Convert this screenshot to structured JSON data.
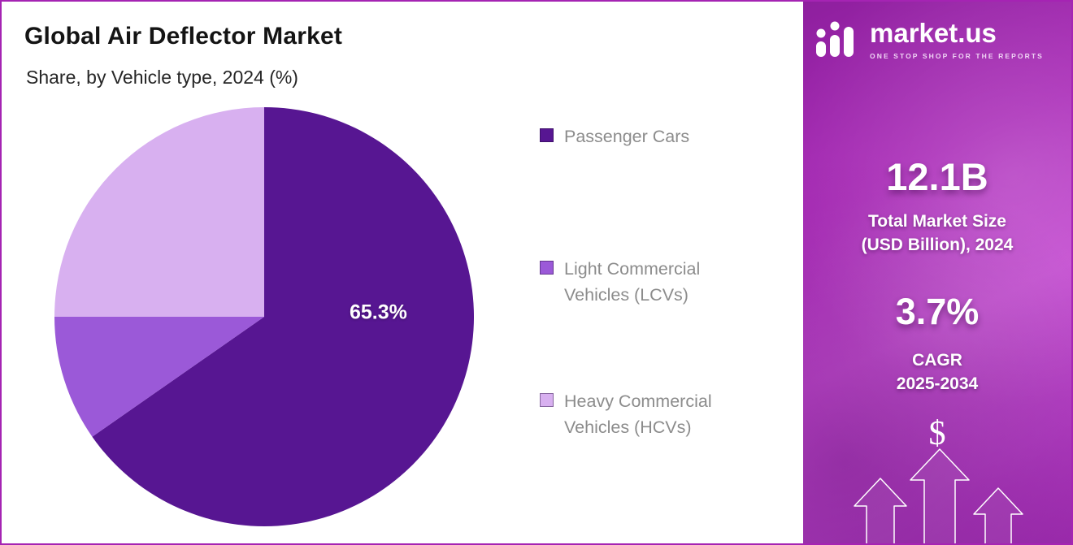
{
  "theme": {
    "border_color": "#a524b3",
    "sidebar_gradient": [
      "#8e1f9e",
      "#c348d0",
      "#9f2cb0"
    ],
    "slice_colors": [
      "#571692",
      "#9b59d8",
      "#d8b0f0"
    ]
  },
  "header": {
    "title": "Global Air Deflector Market",
    "subtitle": "Share, by Vehicle type, 2024 (%)"
  },
  "chart_data": {
    "type": "pie",
    "title": "Global Air Deflector Market",
    "subtitle": "Share, by Vehicle type, 2024 (%)",
    "unit": "%",
    "start_angle": "top",
    "direction": "clockwise",
    "legend_position": "right",
    "note": "Only the Passenger Cars share (65.3%) is labeled in the chart; LCV and HCV shares are estimated from slice geometry.",
    "slices": [
      {
        "label": "Passenger Cars",
        "value": 65.3,
        "color": "#571692",
        "data_label": "65.3%",
        "legend_lines": [
          "Passenger Cars"
        ]
      },
      {
        "label": "Light Commercial Vehicles (LCVs)",
        "value": 9.7,
        "color": "#9b59d8",
        "data_label": "",
        "legend_lines": [
          "Light Commercial",
          "Vehicles (LCVs)"
        ]
      },
      {
        "label": "Heavy Commercial Vehicles (HCVs)",
        "value": 25.0,
        "color": "#d8b0f0",
        "data_label": "",
        "legend_lines": [
          "Heavy Commercial",
          "Vehicles (HCVs)"
        ]
      }
    ]
  },
  "sidebar": {
    "brand": {
      "name": "market.us",
      "tagline": "ONE STOP SHOP FOR THE REPORTS"
    },
    "stats": [
      {
        "value": "12.1B",
        "label_lines": [
          "Total Market Size",
          "(USD Billion), 2024"
        ]
      },
      {
        "value": "3.7%",
        "label_lines": [
          "CAGR",
          "2025-2034"
        ]
      }
    ],
    "dollar_symbol": "$"
  }
}
